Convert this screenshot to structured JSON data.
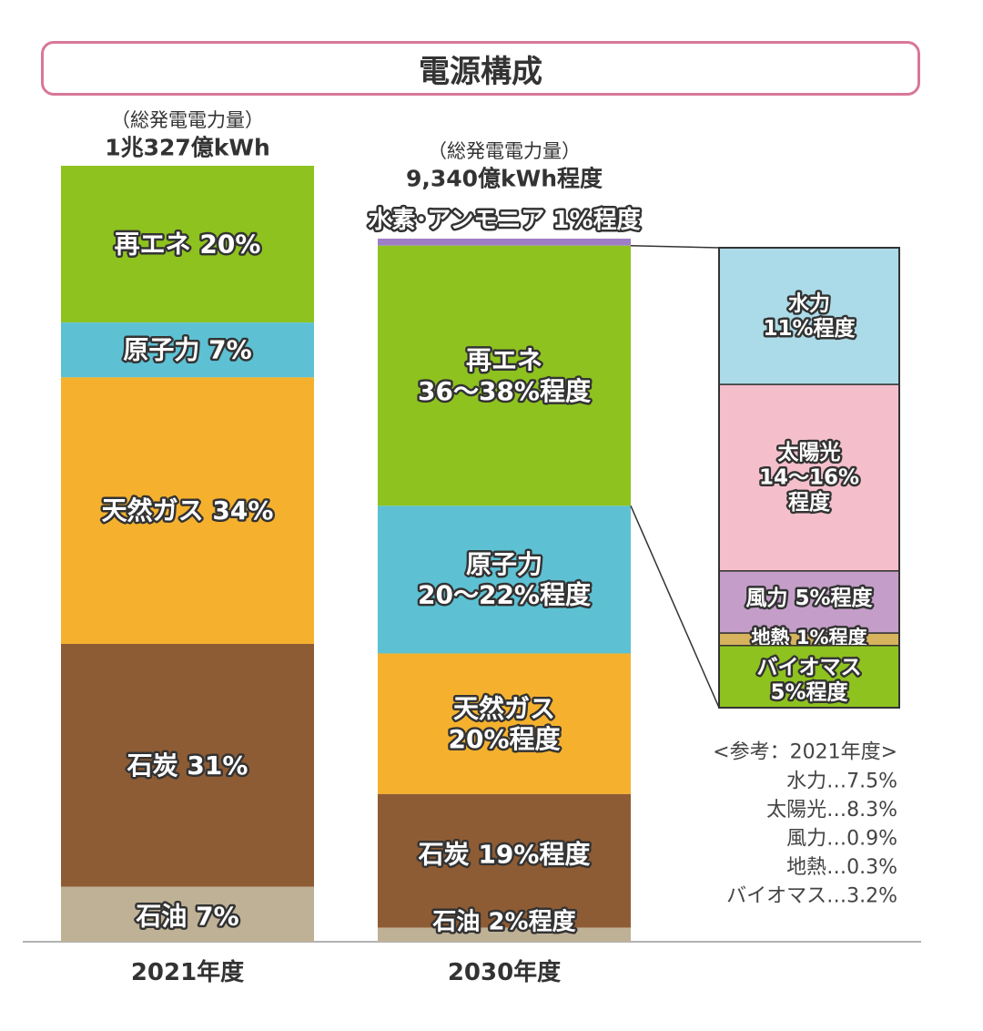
{
  "title": "電源構成",
  "chart_data": {
    "type": "bar",
    "stacked": true,
    "unit": "%",
    "categories": [
      "2021年度",
      "2030年度"
    ],
    "totals": [
      {
        "caption": "（総発電電力量）",
        "value": "1兆327億kWh"
      },
      {
        "caption": "（総発電電力量）",
        "value": "9,340億kWh程度"
      }
    ],
    "bars": [
      {
        "category": "2021年度",
        "segments": [
          {
            "name": "再エネ",
            "value": 20,
            "label": "再エネ 20%",
            "color": "#8ec21f"
          },
          {
            "name": "原子力",
            "value": 7,
            "label": "原子力 7%",
            "color": "#5dc1d3"
          },
          {
            "name": "天然ガス",
            "value": 34,
            "label": "天然ガス 34%",
            "color": "#f5b12e"
          },
          {
            "name": "石炭",
            "value": 31,
            "label": "石炭 31%",
            "color": "#8e5c34"
          },
          {
            "name": "石油",
            "value": 7,
            "label": "石油 7%",
            "color": "#bfb196"
          }
        ]
      },
      {
        "category": "2030年度",
        "segments": [
          {
            "name": "水素・アンモニア",
            "value": 1,
            "label": "水素･アンモニア 1%程度",
            "color": "#9e7ec6"
          },
          {
            "name": "再エネ",
            "value": 37,
            "label": "再エネ\n36～38%程度",
            "color": "#8ec21f"
          },
          {
            "name": "原子力",
            "value": 21,
            "label": "原子力\n20～22%程度",
            "color": "#5dc1d3"
          },
          {
            "name": "天然ガス",
            "value": 20,
            "label": "天然ガス\n20%程度",
            "color": "#f5b12e"
          },
          {
            "name": "石炭",
            "value": 19,
            "label": "石炭 19%程度",
            "color": "#8e5c34"
          },
          {
            "name": "石油",
            "value": 2,
            "label": "石油 2%程度",
            "color": "#bfb196"
          }
        ]
      }
    ],
    "breakdown": {
      "parent": "再エネ",
      "segments": [
        {
          "name": "水力",
          "value": 11,
          "label": "水力\n11%程度",
          "color": "#abdbe8"
        },
        {
          "name": "太陽光",
          "value": 15,
          "label": "太陽光\n14～16%\n程度",
          "color": "#f4bfcb"
        },
        {
          "name": "風力",
          "value": 5,
          "label": "風力 5%程度",
          "color": "#c49ec9"
        },
        {
          "name": "地熱",
          "value": 1,
          "label": "地熱 1%程度",
          "color": "#d8b35e"
        },
        {
          "name": "バイオマス",
          "value": 5,
          "label": "バイオマス\n5%程度",
          "color": "#8ec21f"
        }
      ]
    },
    "reference": {
      "title": "<参考：2021年度>",
      "items": [
        "水力…7.5%",
        "太陽光…8.3%",
        "風力…0.9%",
        "地熱…0.3%",
        "バイオマス…3.2%"
      ]
    }
  }
}
